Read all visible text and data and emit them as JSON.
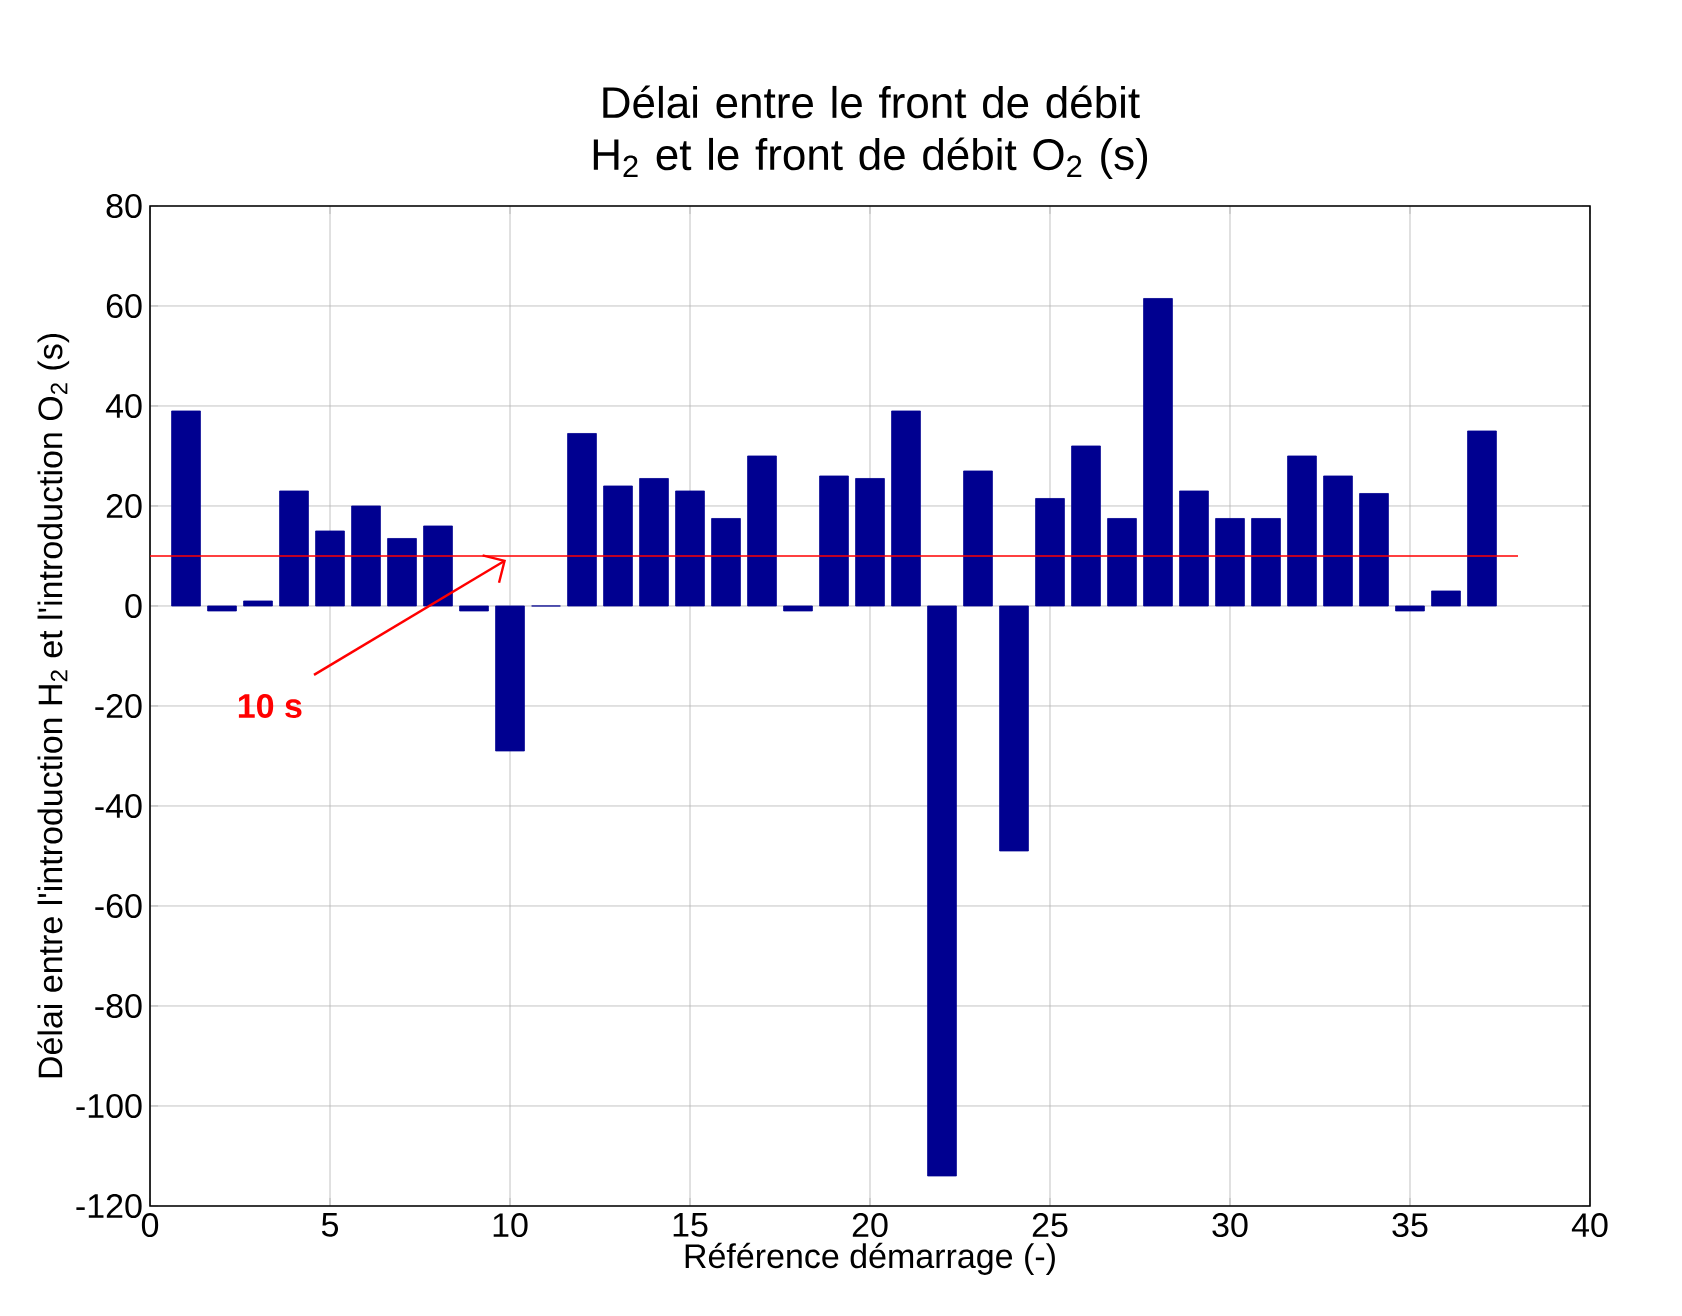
{
  "chart_data": {
    "type": "bar",
    "title": "Délai entre le front de débit H$_{2}$ et le front de débit O$_{2}$ (s)",
    "xlabel": "Référence démarrage (-)",
    "ylabel": "Délai entre l'introduction H$_{2}$ et l'introduction O$_{2}$ (s)",
    "x": [
      1,
      2,
      3,
      4,
      5,
      6,
      7,
      8,
      9,
      10,
      11,
      12,
      13,
      14,
      15,
      16,
      17,
      18,
      19,
      20,
      21,
      22,
      23,
      24,
      25,
      26,
      27,
      28,
      29,
      30,
      31,
      32,
      33,
      34,
      35,
      36,
      37
    ],
    "values": [
      39,
      -1,
      1,
      23,
      15,
      20,
      13.5,
      16,
      -1,
      -29,
      0,
      34.5,
      24,
      25.5,
      23,
      17.5,
      30,
      -1,
      26,
      25.5,
      39,
      -114,
      27,
      -49,
      21.5,
      32,
      17.5,
      61.5,
      23,
      17.5,
      17.5,
      30,
      26,
      22.5,
      -1,
      3,
      35
    ],
    "color": "#000090",
    "xlim": [
      0,
      40
    ],
    "ylim": [
      -120,
      80
    ],
    "xticks": [
      0,
      5,
      10,
      15,
      20,
      25,
      30,
      35,
      40
    ],
    "yticks": [
      -120,
      -100,
      -80,
      -60,
      -40,
      -20,
      0,
      20,
      40,
      60,
      80
    ],
    "grid": true,
    "ref_lines": [
      {
        "axis": "y",
        "value": 10,
        "label": "10 s",
        "color": "#ff0000"
      }
    ]
  }
}
